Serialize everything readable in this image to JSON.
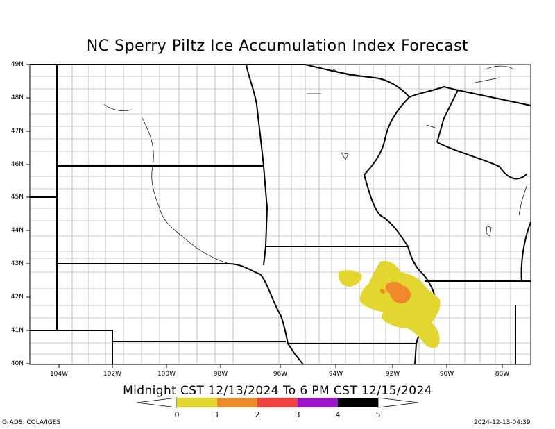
{
  "title": "NC Sperry Piltz Ice Accumulation Index Forecast",
  "subtitle": "Midnight CST 12/13/2024 To 6 PM CST 12/15/2024",
  "latitude_labels": [
    "49N",
    "48N",
    "47N",
    "46N",
    "45N",
    "44N",
    "43N",
    "42N",
    "41N",
    "40N"
  ],
  "longitude_labels": [
    "104W",
    "102W",
    "100W",
    "98W",
    "96W",
    "94W",
    "92W",
    "90W",
    "88W"
  ],
  "legend": {
    "colors": [
      "#e3d72f",
      "#ef8a2a",
      "#ee4141",
      "#9b16c8",
      "#000000"
    ],
    "labels": [
      "0",
      "1",
      "2",
      "3",
      "4",
      "5"
    ]
  },
  "credit": "GrADS: COLA/IGES",
  "timestamp": "2024-12-13-04:39"
}
